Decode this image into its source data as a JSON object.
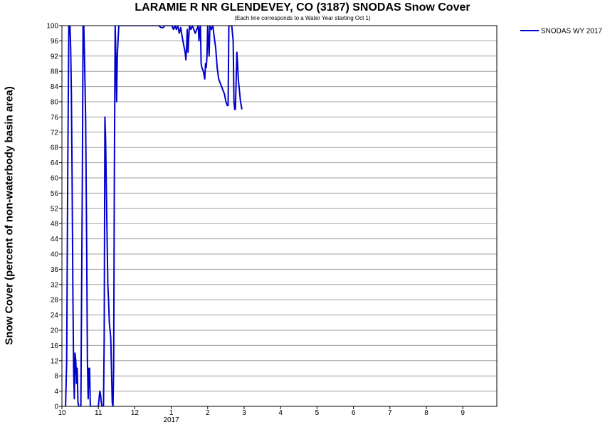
{
  "chart_data": {
    "type": "line",
    "title": "LARAMIE R NR GLENDEVEY, CO (3187) SNODAS Snow Cover",
    "subtitle": "(Each line corresponds to a Water Year starting Oct 1)",
    "ylabel": "Snow Cover (percent of non-waterbody basin area)",
    "xlabel": "",
    "x_tick_labels": [
      "10",
      "11",
      "12",
      "1",
      "2",
      "3",
      "4",
      "5",
      "6",
      "7",
      "8",
      "9"
    ],
    "x_year_label": "2017",
    "ylim": [
      0,
      100
    ],
    "yticks": [
      0,
      4,
      8,
      12,
      16,
      20,
      24,
      28,
      32,
      36,
      40,
      44,
      48,
      52,
      56,
      60,
      64,
      68,
      72,
      76,
      80,
      84,
      88,
      92,
      96,
      100
    ],
    "grid": true,
    "legend_position": "outside top-right",
    "series": [
      {
        "name": "SNODAS WY 2017",
        "color": "#0000cc",
        "x_unit": "month offset from Oct 1 (0 = Oct 1, 1 = Nov 1, ...)",
        "points": [
          [
            0.1,
            0
          ],
          [
            0.13,
            12
          ],
          [
            0.16,
            62
          ],
          [
            0.19,
            100
          ],
          [
            0.22,
            100
          ],
          [
            0.24,
            94
          ],
          [
            0.26,
            82
          ],
          [
            0.28,
            60
          ],
          [
            0.3,
            30
          ],
          [
            0.32,
            10
          ],
          [
            0.34,
            2
          ],
          [
            0.36,
            14
          ],
          [
            0.38,
            12
          ],
          [
            0.4,
            6
          ],
          [
            0.42,
            10
          ],
          [
            0.44,
            1
          ],
          [
            0.46,
            0
          ],
          [
            0.5,
            0
          ],
          [
            0.52,
            0
          ],
          [
            0.56,
            60
          ],
          [
            0.58,
            100
          ],
          [
            0.6,
            100
          ],
          [
            0.62,
            92
          ],
          [
            0.65,
            76
          ],
          [
            0.68,
            42
          ],
          [
            0.7,
            12
          ],
          [
            0.72,
            2
          ],
          [
            0.74,
            10
          ],
          [
            0.76,
            10
          ],
          [
            0.78,
            0
          ],
          [
            0.8,
            0
          ],
          [
            0.9,
            0
          ],
          [
            1.0,
            0
          ],
          [
            1.04,
            4
          ],
          [
            1.06,
            3
          ],
          [
            1.08,
            1
          ],
          [
            1.1,
            0
          ],
          [
            1.14,
            0
          ],
          [
            1.16,
            18
          ],
          [
            1.18,
            76
          ],
          [
            1.2,
            70
          ],
          [
            1.22,
            56
          ],
          [
            1.24,
            44
          ],
          [
            1.26,
            32
          ],
          [
            1.28,
            28
          ],
          [
            1.3,
            22
          ],
          [
            1.32,
            20
          ],
          [
            1.34,
            18
          ],
          [
            1.36,
            10
          ],
          [
            1.38,
            1
          ],
          [
            1.4,
            0
          ],
          [
            1.42,
            10
          ],
          [
            1.44,
            62
          ],
          [
            1.46,
            100
          ],
          [
            1.48,
            92
          ],
          [
            1.5,
            80
          ],
          [
            1.52,
            92
          ],
          [
            1.54,
            96
          ],
          [
            1.56,
            100
          ],
          [
            1.7,
            100
          ],
          [
            2.0,
            100
          ],
          [
            2.5,
            100
          ],
          [
            2.65,
            100
          ],
          [
            2.72,
            99.5
          ],
          [
            2.78,
            99.5
          ],
          [
            2.82,
            100
          ],
          [
            2.9,
            100
          ],
          [
            2.96,
            100
          ],
          [
            3.02,
            100
          ],
          [
            3.06,
            99
          ],
          [
            3.1,
            100
          ],
          [
            3.14,
            99
          ],
          [
            3.18,
            100
          ],
          [
            3.22,
            98
          ],
          [
            3.26,
            99.5
          ],
          [
            3.3,
            97
          ],
          [
            3.34,
            95
          ],
          [
            3.38,
            93
          ],
          [
            3.4,
            91
          ],
          [
            3.42,
            94
          ],
          [
            3.44,
            99
          ],
          [
            3.46,
            93
          ],
          [
            3.48,
            97
          ],
          [
            3.5,
            100
          ],
          [
            3.54,
            99
          ],
          [
            3.58,
            100
          ],
          [
            3.62,
            99
          ],
          [
            3.66,
            98
          ],
          [
            3.7,
            99
          ],
          [
            3.74,
            100
          ],
          [
            3.76,
            96
          ],
          [
            3.78,
            99
          ],
          [
            3.8,
            100
          ],
          [
            3.82,
            90
          ],
          [
            3.84,
            89
          ],
          [
            3.88,
            88
          ],
          [
            3.92,
            86
          ],
          [
            3.94,
            90
          ],
          [
            3.96,
            89
          ],
          [
            3.98,
            92
          ],
          [
            4.0,
            100
          ],
          [
            4.02,
            96
          ],
          [
            4.04,
            92
          ],
          [
            4.06,
            100
          ],
          [
            4.1,
            99
          ],
          [
            4.14,
            100
          ],
          [
            4.18,
            97
          ],
          [
            4.22,
            94
          ],
          [
            4.26,
            89
          ],
          [
            4.3,
            86
          ],
          [
            4.34,
            85
          ],
          [
            4.38,
            84
          ],
          [
            4.42,
            83
          ],
          [
            4.46,
            82
          ],
          [
            4.5,
            80
          ],
          [
            4.54,
            79
          ],
          [
            4.56,
            79
          ],
          [
            4.58,
            100
          ],
          [
            4.6,
            100
          ],
          [
            4.64,
            100
          ],
          [
            4.66,
            100
          ],
          [
            4.7,
            96
          ],
          [
            4.72,
            80
          ],
          [
            4.74,
            78
          ],
          [
            4.76,
            78
          ],
          [
            4.78,
            85
          ],
          [
            4.8,
            93
          ],
          [
            4.82,
            90
          ],
          [
            4.84,
            86
          ],
          [
            4.86,
            84
          ],
          [
            4.88,
            82
          ],
          [
            4.9,
            80
          ],
          [
            4.92,
            79
          ],
          [
            4.94,
            78
          ]
        ]
      }
    ]
  }
}
